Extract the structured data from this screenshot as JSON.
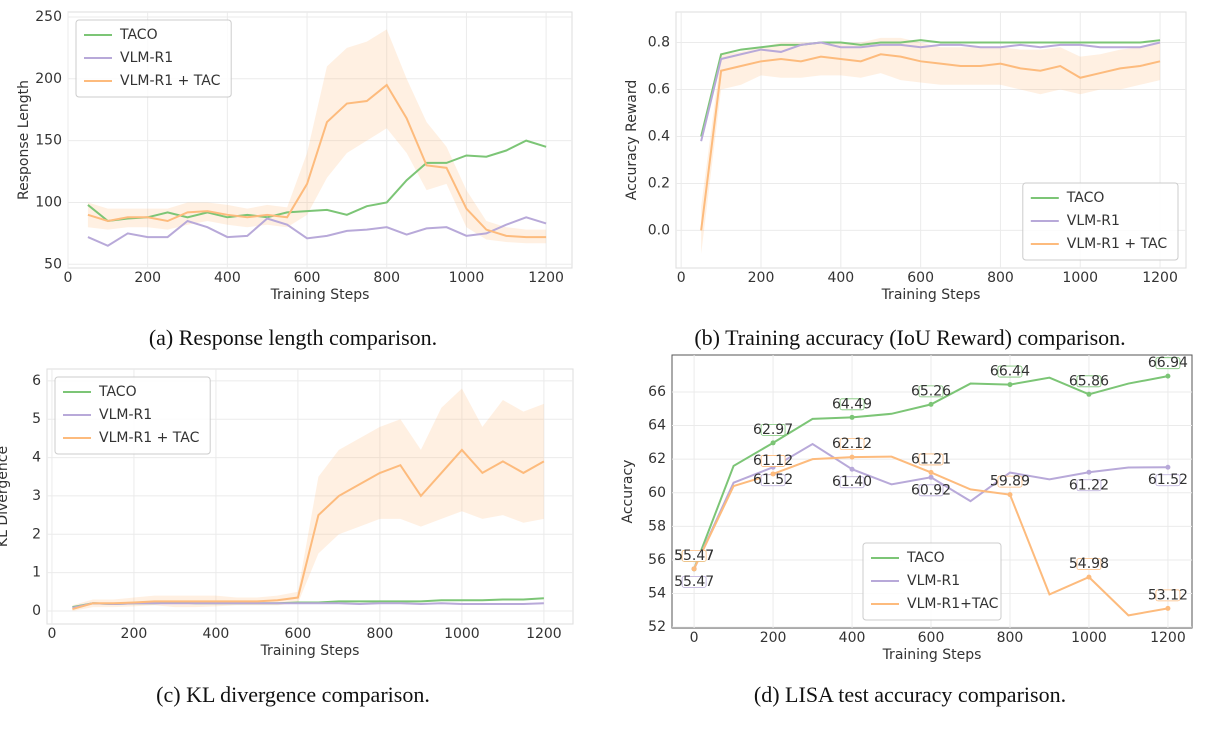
{
  "chart_data": [
    {
      "type": "line",
      "caption": "(a) Response length comparison.",
      "xlabel": "Training Steps",
      "ylabel": "Response Length",
      "xlim": [
        0,
        1265
      ],
      "ylim": [
        47,
        254
      ],
      "xticks": [
        0,
        200,
        400,
        600,
        800,
        1000,
        1200
      ],
      "yticks": [
        50,
        100,
        150,
        200,
        250
      ],
      "grid": true,
      "legend": "upper left",
      "x": [
        50,
        100,
        150,
        200,
        250,
        300,
        350,
        400,
        450,
        500,
        550,
        600,
        650,
        700,
        750,
        800,
        850,
        900,
        950,
        1000,
        1050,
        1100,
        1150,
        1200
      ],
      "series": [
        {
          "name": "TACO",
          "color": "#7cc576",
          "values": [
            98,
            85,
            87,
            88,
            92,
            88,
            92,
            88,
            90,
            88,
            92,
            93,
            94,
            90,
            97,
            100,
            118,
            132,
            132,
            138,
            137,
            142,
            150,
            145
          ]
        },
        {
          "name": "VLM-R1",
          "color": "#b8a9d9",
          "values": [
            72,
            65,
            75,
            72,
            72,
            85,
            80,
            72,
            73,
            87,
            82,
            71,
            73,
            77,
            78,
            80,
            74,
            79,
            80,
            73,
            75,
            82,
            88,
            83
          ]
        },
        {
          "name": "VLM-R1 + TAC",
          "color": "#fdbb7d",
          "values": [
            90,
            85,
            88,
            88,
            85,
            92,
            93,
            90,
            88,
            90,
            88,
            115,
            165,
            180,
            182,
            195,
            168,
            130,
            128,
            95,
            78,
            73,
            72,
            72
          ],
          "lower": [
            80,
            78,
            80,
            80,
            78,
            82,
            85,
            82,
            80,
            82,
            80,
            90,
            120,
            140,
            150,
            160,
            140,
            110,
            115,
            80,
            70,
            68,
            67,
            67
          ],
          "upper": [
            100,
            95,
            95,
            95,
            95,
            100,
            100,
            98,
            95,
            98,
            96,
            140,
            210,
            225,
            230,
            240,
            200,
            165,
            145,
            110,
            85,
            80,
            78,
            78
          ]
        }
      ]
    },
    {
      "type": "line",
      "caption": "(b) Training accuracy (IoU Reward) comparison.",
      "xlabel": "Training Steps",
      "ylabel": "Accuracy Reward",
      "xlim": [
        -13,
        1265
      ],
      "ylim": [
        -0.16,
        0.93
      ],
      "xticks": [
        0,
        200,
        400,
        600,
        800,
        1000,
        1200
      ],
      "yticks": [
        {
          "value": 0,
          "label": "0.0"
        },
        0.2,
        0.4,
        0.6,
        0.8
      ],
      "grid": true,
      "legend": "lower right",
      "x": [
        50,
        100,
        150,
        200,
        250,
        300,
        350,
        400,
        450,
        500,
        550,
        600,
        650,
        700,
        750,
        800,
        850,
        900,
        950,
        1000,
        1050,
        1100,
        1150,
        1200
      ],
      "series": [
        {
          "name": "TACO",
          "color": "#7cc576",
          "values": [
            0.4,
            0.75,
            0.77,
            0.78,
            0.79,
            0.79,
            0.8,
            0.8,
            0.79,
            0.8,
            0.8,
            0.81,
            0.8,
            0.8,
            0.8,
            0.8,
            0.8,
            0.8,
            0.8,
            0.8,
            0.8,
            0.8,
            0.8,
            0.81
          ]
        },
        {
          "name": "VLM-R1",
          "color": "#b8a9d9",
          "values": [
            0.38,
            0.73,
            0.75,
            0.77,
            0.76,
            0.79,
            0.8,
            0.78,
            0.78,
            0.79,
            0.79,
            0.78,
            0.79,
            0.79,
            0.78,
            0.78,
            0.79,
            0.78,
            0.79,
            0.79,
            0.78,
            0.78,
            0.78,
            0.8
          ]
        },
        {
          "name": "VLM-R1 + TAC",
          "color": "#fdbb7d",
          "values": [
            0,
            0.68,
            0.7,
            0.72,
            0.73,
            0.72,
            0.74,
            0.73,
            0.72,
            0.75,
            0.74,
            0.72,
            0.71,
            0.7,
            0.7,
            0.71,
            0.69,
            0.68,
            0.7,
            0.65,
            0.67,
            0.69,
            0.7,
            0.72
          ],
          "lower": [
            -0.1,
            0.6,
            0.62,
            0.66,
            0.65,
            0.65,
            0.66,
            0.66,
            0.65,
            0.67,
            0.64,
            0.63,
            0.62,
            0.62,
            0.62,
            0.62,
            0.6,
            0.58,
            0.6,
            0.58,
            0.6,
            0.6,
            0.62,
            0.64
          ],
          "upper": [
            0.1,
            0.75,
            0.76,
            0.78,
            0.8,
            0.8,
            0.8,
            0.8,
            0.8,
            0.82,
            0.82,
            0.8,
            0.78,
            0.78,
            0.78,
            0.78,
            0.77,
            0.77,
            0.78,
            0.74,
            0.75,
            0.77,
            0.78,
            0.8
          ]
        }
      ]
    },
    {
      "type": "line",
      "caption": "(c) KL divergence comparison.",
      "xlabel": "Training Steps",
      "ylabel": "KL Divergence",
      "xlim": [
        -12,
        1271
      ],
      "ylim": [
        -0.34,
        6.31
      ],
      "xticks": [
        0,
        200,
        400,
        600,
        800,
        1000,
        1200
      ],
      "yticks": [
        0,
        1,
        2,
        3,
        4,
        5,
        6
      ],
      "grid": true,
      "legend": "upper left",
      "x": [
        50,
        100,
        150,
        200,
        250,
        300,
        350,
        400,
        450,
        500,
        550,
        600,
        650,
        700,
        750,
        800,
        850,
        900,
        950,
        1000,
        1050,
        1100,
        1150,
        1200
      ],
      "series": [
        {
          "name": "TACO",
          "color": "#7cc576",
          "values": [
            0.1,
            0.2,
            0.18,
            0.2,
            0.2,
            0.22,
            0.2,
            0.2,
            0.2,
            0.2,
            0.2,
            0.22,
            0.22,
            0.25,
            0.25,
            0.25,
            0.25,
            0.25,
            0.28,
            0.28,
            0.28,
            0.3,
            0.3,
            0.33
          ]
        },
        {
          "name": "VLM-R1",
          "color": "#b8a9d9",
          "values": [
            0.08,
            0.2,
            0.18,
            0.2,
            0.2,
            0.2,
            0.2,
            0.2,
            0.2,
            0.2,
            0.2,
            0.2,
            0.2,
            0.2,
            0.18,
            0.2,
            0.2,
            0.18,
            0.2,
            0.18,
            0.18,
            0.18,
            0.18,
            0.2
          ]
        },
        {
          "name": "VLM-R1 + TAC",
          "color": "#fdbb7d",
          "values": [
            0.05,
            0.2,
            0.2,
            0.22,
            0.25,
            0.25,
            0.25,
            0.25,
            0.25,
            0.25,
            0.28,
            0.35,
            2.5,
            3.0,
            3.3,
            3.6,
            3.8,
            3.0,
            3.6,
            4.2,
            3.6,
            3.9,
            3.6,
            3.9
          ],
          "lower": [
            0,
            0.1,
            0.1,
            0.12,
            0.15,
            0.1,
            0.1,
            0.12,
            0.15,
            0.15,
            0.15,
            0.2,
            1.5,
            2.0,
            2.2,
            2.4,
            2.4,
            2.2,
            2.4,
            2.6,
            2.4,
            2.5,
            2.3,
            2.4
          ],
          "upper": [
            0.15,
            0.3,
            0.3,
            0.35,
            0.4,
            0.4,
            0.4,
            0.4,
            0.35,
            0.35,
            0.4,
            0.5,
            3.5,
            4.2,
            4.5,
            4.8,
            5.0,
            4.2,
            5.3,
            5.8,
            4.8,
            5.5,
            5.2,
            5.4
          ]
        }
      ]
    },
    {
      "type": "line",
      "caption": "(d) LISA test accuracy comparison.",
      "xlabel": "Training Steps",
      "ylabel": "Accuracy",
      "xlim": [
        -56,
        1261
      ],
      "ylim": [
        51.95,
        68.2
      ],
      "xticks": [
        0,
        200,
        400,
        600,
        800,
        1000,
        1200
      ],
      "yticks": [
        52,
        54,
        56,
        58,
        60,
        62,
        64,
        66
      ],
      "grid": true,
      "legend": "lower center",
      "x": [
        0,
        100,
        200,
        300,
        400,
        500,
        600,
        700,
        800,
        900,
        1000,
        1100,
        1200
      ],
      "series": [
        {
          "name": "TACO",
          "color": "#7cc576",
          "values": [
            55.47,
            61.6,
            62.97,
            64.4,
            64.49,
            64.7,
            65.26,
            66.5,
            66.44,
            66.85,
            65.86,
            66.5,
            66.94
          ],
          "value_labels": [
            "55.47",
            null,
            "62.97",
            null,
            "64.49",
            null,
            "65.26",
            null,
            "66.44",
            null,
            "65.86",
            null,
            "66.94"
          ]
        },
        {
          "name": "VLM-R1",
          "color": "#b8a9d9",
          "values": [
            55.47,
            60.6,
            61.52,
            62.9,
            61.4,
            60.5,
            60.92,
            59.5,
            61.2,
            60.8,
            61.22,
            61.5,
            61.52
          ],
          "value_labels": [
            "55.47",
            null,
            "61.52",
            null,
            "61.40",
            null,
            "60.92",
            null,
            null,
            null,
            "61.22",
            null,
            "61.52"
          ]
        },
        {
          "name": "VLM-R1+TAC",
          "color": "#fdbb7d",
          "values": [
            55.47,
            60.4,
            61.12,
            62.0,
            62.12,
            62.15,
            61.21,
            60.2,
            59.89,
            53.95,
            54.98,
            52.7,
            53.12
          ],
          "value_labels": [
            "55.47",
            null,
            "61.12",
            null,
            "62.12",
            null,
            "61.21",
            null,
            "59.89",
            null,
            "54.98",
            null,
            "53.12"
          ]
        }
      ]
    }
  ]
}
